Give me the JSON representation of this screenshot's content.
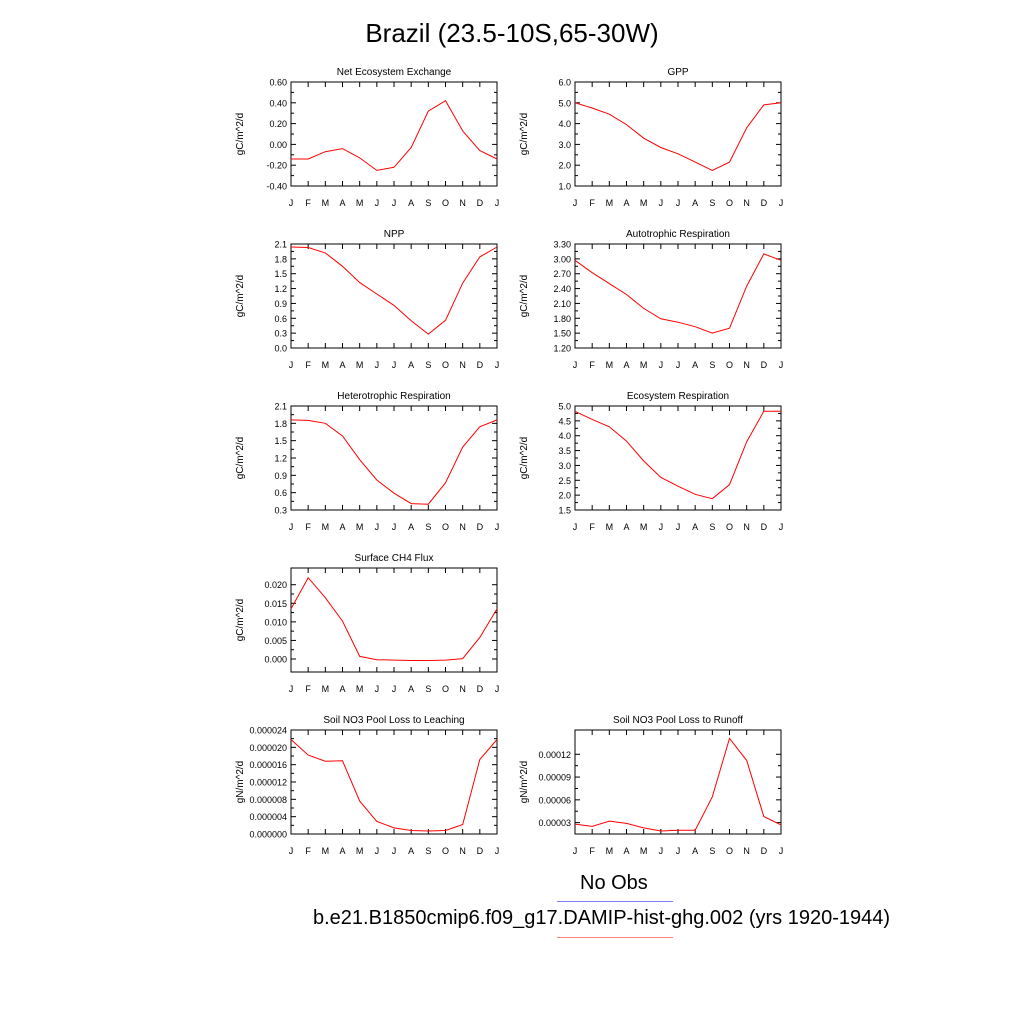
{
  "title": "Brazil (23.5-10S,65-30W)",
  "legend": [
    {
      "label": "No Obs",
      "color": "#7f7fff"
    },
    {
      "label": "b.e21.B1850cmip6.f09_g17.DAMIP-hist-ghg.002 (yrs 1920-1944)",
      "color": "#ff7f7f"
    }
  ],
  "series_color": "#ff0000",
  "chart_data": [
    {
      "type": "line",
      "title": "Net Ecosystem Exchange",
      "ylabel": "gC/m^2/d",
      "x": [
        "J",
        "F",
        "M",
        "A",
        "M",
        "J",
        "J",
        "A",
        "S",
        "O",
        "N",
        "D",
        "J"
      ],
      "values": [
        -0.14,
        -0.14,
        -0.07,
        -0.04,
        -0.13,
        -0.25,
        -0.22,
        -0.03,
        0.32,
        0.42,
        0.13,
        -0.06,
        -0.14
      ],
      "ylim": [
        -0.4,
        0.6
      ],
      "yticks": [
        "0.60",
        "0.40",
        "0.20",
        "0.00",
        "-0.20",
        "-0.40"
      ],
      "ytick_values": [
        0.6,
        0.4,
        0.2,
        0.0,
        -0.2,
        -0.4
      ]
    },
    {
      "type": "line",
      "title": "GPP",
      "ylabel": "gC/m^2/d",
      "x": [
        "J",
        "F",
        "M",
        "A",
        "M",
        "J",
        "J",
        "A",
        "S",
        "O",
        "N",
        "D",
        "J"
      ],
      "values": [
        5.0,
        4.75,
        4.45,
        3.95,
        3.3,
        2.85,
        2.55,
        2.15,
        1.75,
        2.15,
        3.8,
        4.9,
        5.0
      ],
      "ylim": [
        1.0,
        6.0
      ],
      "yticks": [
        "6.0",
        "5.0",
        "4.0",
        "3.0",
        "2.0",
        "1.0"
      ],
      "ytick_values": [
        6,
        5,
        4,
        3,
        2,
        1
      ]
    },
    {
      "type": "line",
      "title": "NPP",
      "ylabel": "gC/m^2/d",
      "x": [
        "J",
        "F",
        "M",
        "A",
        "M",
        "J",
        "J",
        "A",
        "S",
        "O",
        "N",
        "D",
        "J"
      ],
      "values": [
        2.04,
        2.03,
        1.92,
        1.65,
        1.32,
        1.09,
        0.86,
        0.55,
        0.28,
        0.56,
        1.31,
        1.84,
        2.04
      ],
      "ylim": [
        0.0,
        2.1
      ],
      "yticks": [
        "2.1",
        "1.8",
        "1.5",
        "1.2",
        "0.9",
        "0.6",
        "0.3",
        "0.0"
      ],
      "ytick_values": [
        2.1,
        1.8,
        1.5,
        1.2,
        0.9,
        0.6,
        0.3,
        0.0
      ]
    },
    {
      "type": "line",
      "title": "Autotrophic Respiration",
      "ylabel": "gC/m^2/d",
      "x": [
        "J",
        "F",
        "M",
        "A",
        "M",
        "J",
        "J",
        "A",
        "S",
        "O",
        "N",
        "D",
        "J"
      ],
      "values": [
        2.97,
        2.72,
        2.5,
        2.28,
        2.0,
        1.79,
        1.72,
        1.63,
        1.5,
        1.6,
        2.45,
        3.1,
        2.97
      ],
      "ylim": [
        1.2,
        3.3
      ],
      "yticks": [
        "3.30",
        "3.00",
        "2.70",
        "2.40",
        "2.10",
        "1.80",
        "1.50",
        "1.20"
      ],
      "ytick_values": [
        3.3,
        3.0,
        2.7,
        2.4,
        2.1,
        1.8,
        1.5,
        1.2
      ]
    },
    {
      "type": "line",
      "title": "Heterotrophic Respiration",
      "ylabel": "gC/m^2/d",
      "x": [
        "J",
        "F",
        "M",
        "A",
        "M",
        "J",
        "J",
        "A",
        "S",
        "O",
        "N",
        "D",
        "J"
      ],
      "values": [
        1.86,
        1.85,
        1.8,
        1.58,
        1.17,
        0.82,
        0.59,
        0.41,
        0.4,
        0.77,
        1.39,
        1.74,
        1.86
      ],
      "ylim": [
        0.3,
        2.1
      ],
      "yticks": [
        "2.1",
        "1.8",
        "1.5",
        "1.2",
        "0.9",
        "0.6",
        "0.3"
      ],
      "ytick_values": [
        2.1,
        1.8,
        1.5,
        1.2,
        0.9,
        0.6,
        0.3
      ]
    },
    {
      "type": "line",
      "title": "Ecosystem Respiration",
      "ylabel": "gC/m^2/d",
      "x": [
        "J",
        "F",
        "M",
        "A",
        "M",
        "J",
        "J",
        "A",
        "S",
        "O",
        "N",
        "D",
        "J"
      ],
      "values": [
        4.82,
        4.55,
        4.3,
        3.82,
        3.15,
        2.6,
        2.3,
        2.03,
        1.88,
        2.35,
        3.8,
        4.82,
        4.82
      ],
      "ylim": [
        1.5,
        5.0
      ],
      "yticks": [
        "5.0",
        "4.5",
        "4.0",
        "3.5",
        "3.0",
        "2.5",
        "2.0",
        "1.5"
      ],
      "ytick_values": [
        5.0,
        4.5,
        4.0,
        3.5,
        3.0,
        2.5,
        2.0,
        1.5
      ]
    },
    {
      "type": "line",
      "title": "Surface CH4 Flux",
      "ylabel": "gC/m^2/d",
      "x": [
        "J",
        "F",
        "M",
        "A",
        "M",
        "J",
        "J",
        "A",
        "S",
        "O",
        "N",
        "D",
        "J"
      ],
      "values": [
        0.0135,
        0.0219,
        0.0165,
        0.0102,
        0.0007,
        -0.0002,
        -0.0003,
        -0.0004,
        -0.0004,
        -0.0003,
        0.0001,
        0.0058,
        0.0135
      ],
      "ylim": [
        -0.0035,
        0.0245
      ],
      "yticks": [
        "0.020",
        "0.015",
        "0.010",
        "0.005",
        "0.000"
      ],
      "ytick_values": [
        0.02,
        0.015,
        0.01,
        0.005,
        0.0
      ]
    },
    {
      "type": "line",
      "title": "Soil NO3 Pool Loss to Leaching",
      "ylabel": "gN/m^2/d",
      "x": [
        "J",
        "F",
        "M",
        "A",
        "M",
        "J",
        "J",
        "A",
        "S",
        "O",
        "N",
        "D",
        "J"
      ],
      "values": [
        2.18e-05,
        1.82e-05,
        1.68e-05,
        1.69e-05,
        7.6e-06,
        2.9e-06,
        1.4e-06,
        8e-07,
        7e-07,
        8e-07,
        2.2e-06,
        1.72e-05,
        2.18e-05
      ],
      "ylim": [
        0.0,
        2.4e-05
      ],
      "yticks": [
        "0.000024",
        "0.000020",
        "0.000016",
        "0.000012",
        "0.000008",
        "0.000004",
        "0.000000"
      ],
      "ytick_values": [
        2.4e-05,
        2e-05,
        1.6e-05,
        1.2e-05,
        8e-06,
        4e-06,
        0.0
      ]
    },
    {
      "type": "line",
      "title": "Soil NO3 Pool Loss to Runoff",
      "ylabel": "gN/m^2/d",
      "x": [
        "J",
        "F",
        "M",
        "A",
        "M",
        "J",
        "J",
        "A",
        "S",
        "O",
        "N",
        "D",
        "J"
      ],
      "values": [
        2.8e-05,
        2.5e-05,
        3.2e-05,
        2.9e-05,
        2.3e-05,
        1.9e-05,
        2e-05,
        2e-05,
        6.4e-05,
        0.000141,
        0.000112,
        3.8e-05,
        2.7e-05
      ],
      "ylim": [
        1.5e-05,
        0.000152
      ],
      "yticks": [
        "0.00012",
        "0.00009",
        "0.00006",
        "0.00003"
      ],
      "ytick_values": [
        0.00012,
        9e-05,
        6e-05,
        3e-05
      ]
    }
  ]
}
